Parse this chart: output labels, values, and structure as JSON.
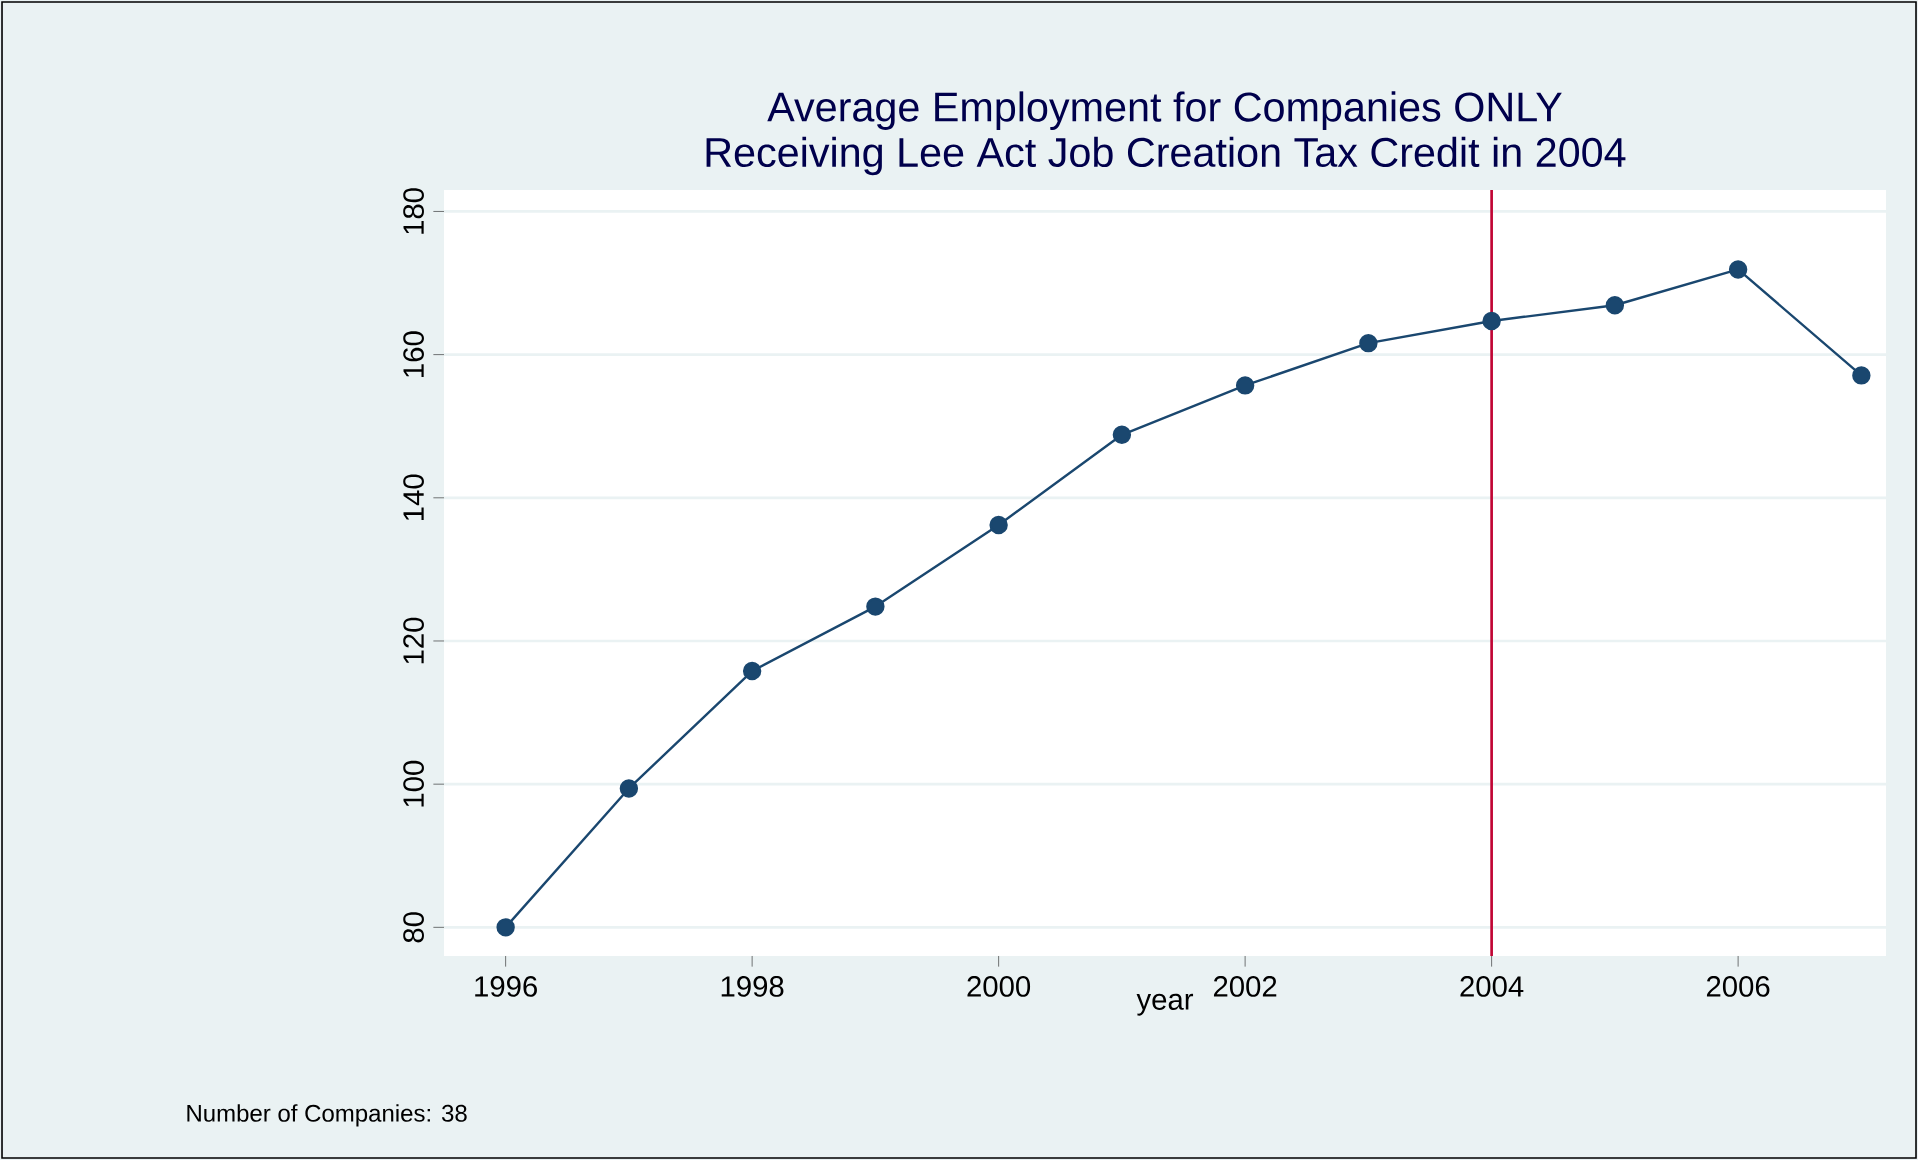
{
  "chart_data": {
    "type": "line",
    "title": "Average Employment for Companies ONLY\nReceiving Lee Act Job Creation Tax Credit in 2004",
    "xlabel": "year",
    "x": [
      1996,
      1997,
      1998,
      1999,
      2000,
      2001,
      2002,
      2003,
      2004,
      2005,
      2006,
      2007
    ],
    "series": [
      {
        "color": "#1a476f",
        "values": [
          80,
          99.4,
          115.8,
          124.8,
          136.2,
          148.8,
          155.7,
          161.6,
          164.7,
          166.9,
          171.9,
          157.1
        ]
      }
    ],
    "xlim": [
      1995.5,
      2007.2
    ],
    "ylim": [
      76,
      183
    ],
    "xticks": [
      1996,
      1998,
      2000,
      2002,
      2004,
      2006
    ],
    "yticks": [
      80,
      100,
      120,
      140,
      160,
      180
    ],
    "grid": "y",
    "marker": "circle",
    "line_style": "solid",
    "ref_lines": [
      {
        "axis": "x",
        "value": 2004,
        "color": "#c10534"
      }
    ],
    "annotations": [
      "Number of Companies: 38"
    ]
  }
}
